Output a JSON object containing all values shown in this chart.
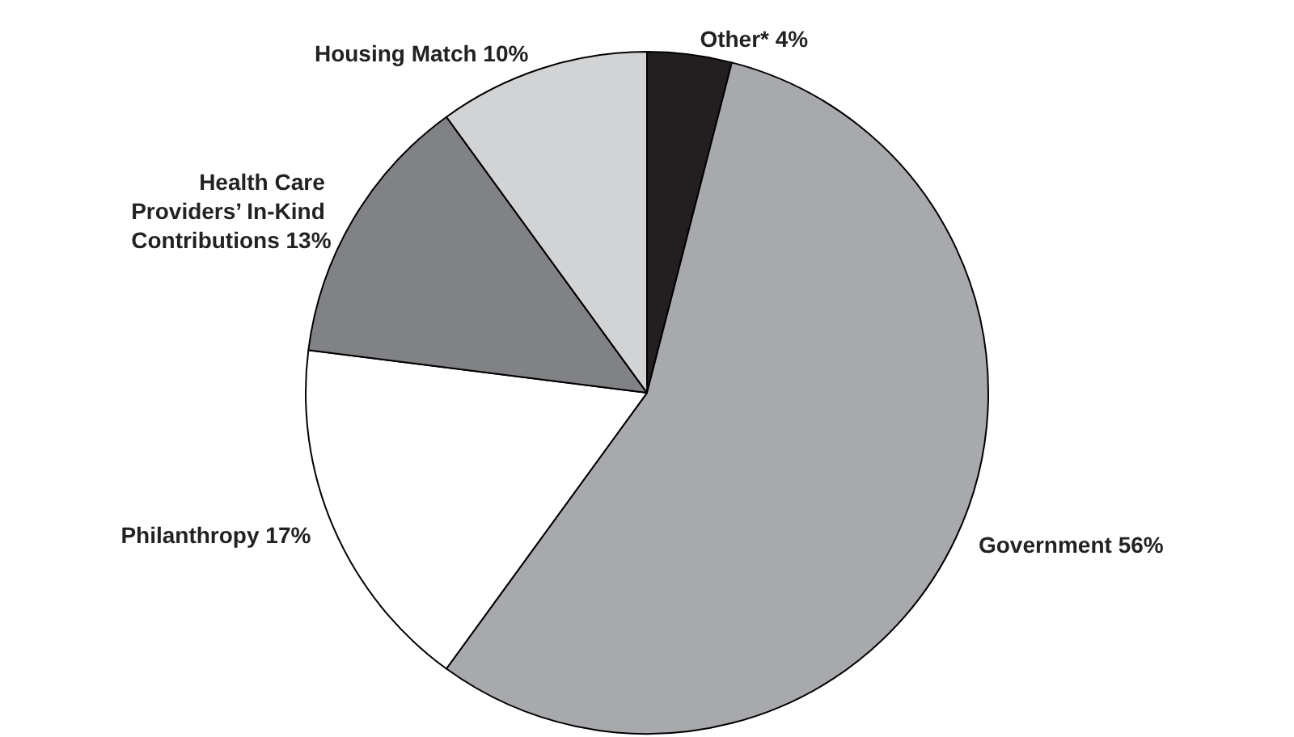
{
  "chart_data": {
    "type": "pie",
    "categories": [
      "Other*",
      "Government",
      "Philanthropy",
      "Health Care Providers’ In-Kind Contributions",
      "Housing Match"
    ],
    "values": [
      4,
      56,
      17,
      13,
      10
    ],
    "value_labels": [
      "4%",
      "56%",
      "17%",
      "13%",
      "10%"
    ],
    "colors": [
      "#231f20",
      "#a7a9ac",
      "#ffffff",
      "#808285",
      "#d1d3d4"
    ],
    "legend": false
  }
}
